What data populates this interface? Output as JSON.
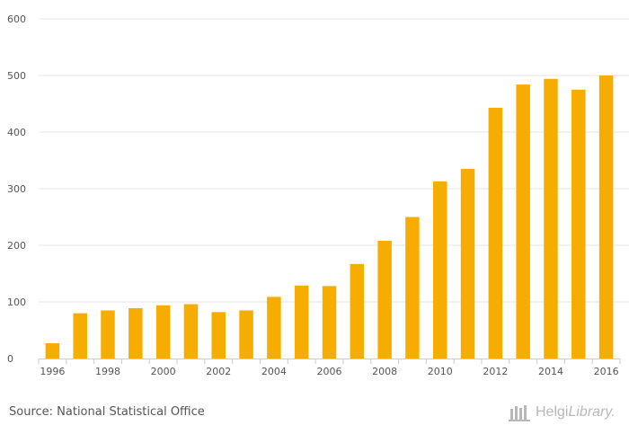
{
  "chart_data": {
    "type": "bar",
    "categories": [
      "1996",
      "1997",
      "1998",
      "1999",
      "2000",
      "2001",
      "2002",
      "2003",
      "2004",
      "2005",
      "2006",
      "2007",
      "2008",
      "2009",
      "2010",
      "2011",
      "2012",
      "2013",
      "2014",
      "2015",
      "2016"
    ],
    "values": [
      27,
      80,
      85,
      89,
      94,
      96,
      82,
      85,
      109,
      129,
      128,
      167,
      208,
      250,
      313,
      335,
      443,
      484,
      494,
      475,
      500
    ],
    "x_tick_labels": [
      "1996",
      "1998",
      "2000",
      "2002",
      "2004",
      "2006",
      "2008",
      "2010",
      "2012",
      "2014",
      "2016"
    ],
    "y_ticks": [
      0,
      100,
      200,
      300,
      400,
      500,
      600
    ],
    "ylim": [
      0,
      600
    ],
    "title": "",
    "xlabel": "",
    "ylabel": "",
    "grid": true,
    "bar_color": "#f7ad00",
    "grid_color": "#e6e6e6",
    "axis_color": "#cccccc",
    "label_color": "#555555"
  },
  "footer": {
    "source": "Source: National Statistical Office",
    "logo_icon": "helgi-library-logo-icon",
    "logo_brand": "Helgi",
    "logo_suffix": "Library."
  }
}
